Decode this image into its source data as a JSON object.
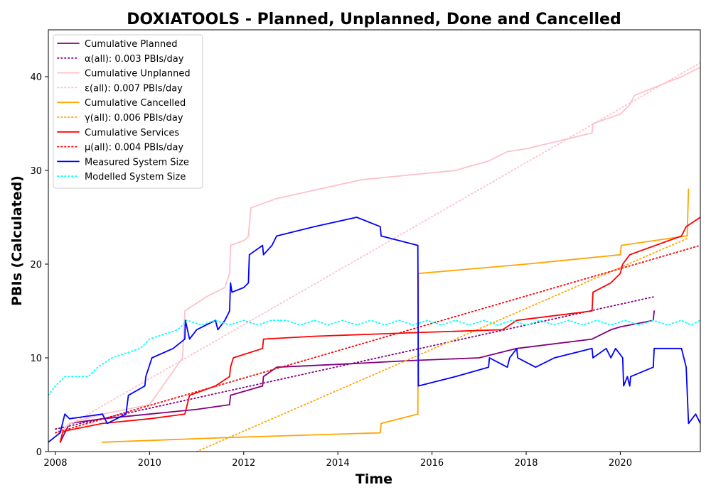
{
  "chart_data": {
    "type": "line",
    "title": "DOXIATOOLS - Planned, Unplanned, Done  and Cancelled",
    "xlabel": "Time",
    "ylabel": "PBIs (Calculated)",
    "xlim": [
      2007.85,
      2021.7
    ],
    "ylim": [
      0,
      45
    ],
    "x_ticks": [
      2008,
      2010,
      2012,
      2014,
      2016,
      2018,
      2020
    ],
    "y_ticks": [
      0,
      10,
      20,
      30,
      40
    ],
    "grid": false,
    "legend_position": "top-left",
    "series": [
      {
        "name": "Cumulative Planned",
        "color": "#800080",
        "style": "solid",
        "x": [
          2008.1,
          2008.2,
          2008.3,
          2009.0,
          2010.0,
          2011.0,
          2011.7,
          2011.72,
          2012.4,
          2012.42,
          2012.7,
          2014.0,
          2015.5,
          2017.0,
          2017.8,
          2019.4,
          2019.8,
          2020.0,
          2020.7,
          2020.72
        ],
        "y": [
          1,
          2,
          3,
          3.5,
          4,
          4.5,
          5,
          6,
          7,
          8,
          9,
          9.3,
          9.7,
          10,
          11,
          12,
          13,
          13.3,
          14,
          15
        ]
      },
      {
        "name": "α(all): 0.003 PBIs/day",
        "color": "#800080",
        "style": "dotted",
        "x": [
          2008.0,
          2020.7
        ],
        "y": [
          2.4,
          16.5
        ]
      },
      {
        "name": "Cumulative Unplanned",
        "color": "#ffc0cb",
        "style": "solid",
        "x": [
          2008.1,
          2008.3,
          2009.0,
          2010.0,
          2010.7,
          2010.75,
          2011.2,
          2011.6,
          2011.7,
          2011.72,
          2012.0,
          2012.1,
          2012.15,
          2012.7,
          2014.5,
          2016.5,
          2017.2,
          2017.6,
          2018.0,
          2019.4,
          2019.42,
          2020.0,
          2020.2,
          2020.25,
          2020.3,
          2021.3,
          2021.7
        ],
        "y": [
          2,
          3,
          4,
          5,
          10,
          15,
          16.5,
          17.5,
          19,
          22,
          22.5,
          23,
          26,
          27,
          29,
          30,
          31,
          32,
          32.3,
          34,
          35,
          36,
          37,
          37.5,
          38,
          40,
          41
        ]
      },
      {
        "name": "ε(all): 0.007 PBIs/day",
        "color": "#ffc0cb",
        "style": "dotted",
        "x": [
          2008.0,
          2021.7
        ],
        "y": [
          2.0,
          41.5
        ]
      },
      {
        "name": "Cumulative Cancelled",
        "color": "#ffa500",
        "style": "solid",
        "x": [
          2009.0,
          2011.7,
          2014.9,
          2014.92,
          2015.7,
          2015.71,
          2018.0,
          2020.0,
          2020.02,
          2021.4,
          2021.42,
          2021.45
        ],
        "y": [
          1,
          1.5,
          2,
          3,
          4,
          19,
          20,
          21,
          22,
          23,
          23,
          28
        ]
      },
      {
        "name": "γ(all): 0.006 PBIs/day",
        "color": "#ffa500",
        "style": "dotted",
        "x": [
          2011.0,
          2021.45
        ],
        "y": [
          0,
          22.8
        ]
      },
      {
        "name": "Cumulative Services",
        "color": "#ff0000",
        "style": "solid",
        "x": [
          2008.1,
          2008.15,
          2008.2,
          2009.0,
          2010.0,
          2010.75,
          2010.8,
          2010.85,
          2011.4,
          2011.7,
          2011.72,
          2011.78,
          2012.4,
          2012.42,
          2013.5,
          2015.7,
          2017.5,
          2017.8,
          2019.4,
          2019.42,
          2019.8,
          2020.0,
          2020.05,
          2020.2,
          2021.3,
          2021.4,
          2021.7
        ],
        "y": [
          1,
          2,
          2.2,
          3,
          3.5,
          4,
          5,
          6,
          7,
          8,
          9,
          10,
          11,
          12,
          12.3,
          12.7,
          13,
          14,
          15,
          17,
          18,
          19,
          20,
          21,
          23,
          24,
          25
        ]
      },
      {
        "name": "μ(all): 0.004 PBIs/day",
        "color": "#ff0000",
        "style": "dotted",
        "x": [
          2008.0,
          2021.7
        ],
        "y": [
          2.0,
          22.0
        ]
      },
      {
        "name": "Measured System Size",
        "color": "#0000ff",
        "style": "solid",
        "x": [
          2007.85,
          2008.1,
          2008.15,
          2008.2,
          2008.3,
          2009.0,
          2009.1,
          2009.5,
          2009.55,
          2009.9,
          2009.92,
          2010.05,
          2010.5,
          2010.75,
          2010.76,
          2010.85,
          2011.0,
          2011.4,
          2011.45,
          2011.6,
          2011.7,
          2011.72,
          2011.75,
          2012.0,
          2012.1,
          2012.12,
          2012.4,
          2012.42,
          2012.6,
          2012.7,
          2013.5,
          2014.4,
          2014.9,
          2014.92,
          2015.7,
          2015.71,
          2016.5,
          2017.2,
          2017.22,
          2017.6,
          2017.65,
          2017.8,
          2017.82,
          2018.2,
          2018.6,
          2019.4,
          2019.42,
          2019.7,
          2019.8,
          2019.9,
          2020.05,
          2020.07,
          2020.15,
          2020.2,
          2020.22,
          2020.7,
          2020.72,
          2021.3,
          2021.4,
          2021.45,
          2021.6,
          2021.7
        ],
        "y": [
          1,
          2,
          3,
          4,
          3.5,
          4,
          3,
          4,
          6,
          7,
          8,
          10,
          11,
          12,
          14,
          12,
          13,
          14,
          13,
          14,
          15,
          18,
          17,
          17.5,
          18,
          21,
          22,
          21,
          22,
          23,
          24,
          25,
          24,
          23,
          22,
          7,
          8,
          9,
          10,
          9,
          10,
          11,
          10,
          9,
          10,
          11,
          10,
          11,
          10,
          11,
          10,
          7,
          8,
          7,
          8,
          9,
          11,
          11,
          9,
          3,
          4,
          3
        ]
      },
      {
        "name": "Modelled System Size",
        "color": "#00ffff",
        "style": "dotted",
        "x": [
          2007.85,
          2008.0,
          2008.2,
          2008.5,
          2008.7,
          2008.9,
          2009.2,
          2009.5,
          2009.8,
          2010.0,
          2010.3,
          2010.6,
          2010.8,
          2011.1,
          2011.4,
          2011.7,
          2012.0,
          2012.3,
          2012.6,
          2012.9,
          2013.2,
          2013.5,
          2013.8,
          2014.1,
          2014.4,
          2014.7,
          2015.0,
          2015.3,
          2015.6,
          2015.9,
          2016.2,
          2016.5,
          2016.8,
          2017.1,
          2017.4,
          2017.7,
          2018.0,
          2018.3,
          2018.6,
          2018.9,
          2019.2,
          2019.5,
          2019.8,
          2020.1,
          2020.4,
          2020.7,
          2021.0,
          2021.3,
          2021.5,
          2021.7
        ],
        "y": [
          6,
          7,
          8,
          8,
          8,
          9,
          10,
          10.5,
          11,
          12,
          12.5,
          13,
          14,
          13.5,
          14,
          13.5,
          14,
          13.5,
          14,
          14,
          13.5,
          14,
          13.5,
          14,
          13.5,
          14,
          13.5,
          14,
          13.5,
          14,
          13.5,
          14,
          13.5,
          14,
          13.5,
          14,
          13.5,
          14,
          13.5,
          14,
          13.5,
          14,
          13.5,
          14,
          13.5,
          14,
          13.5,
          14,
          13.5,
          14
        ]
      }
    ]
  }
}
